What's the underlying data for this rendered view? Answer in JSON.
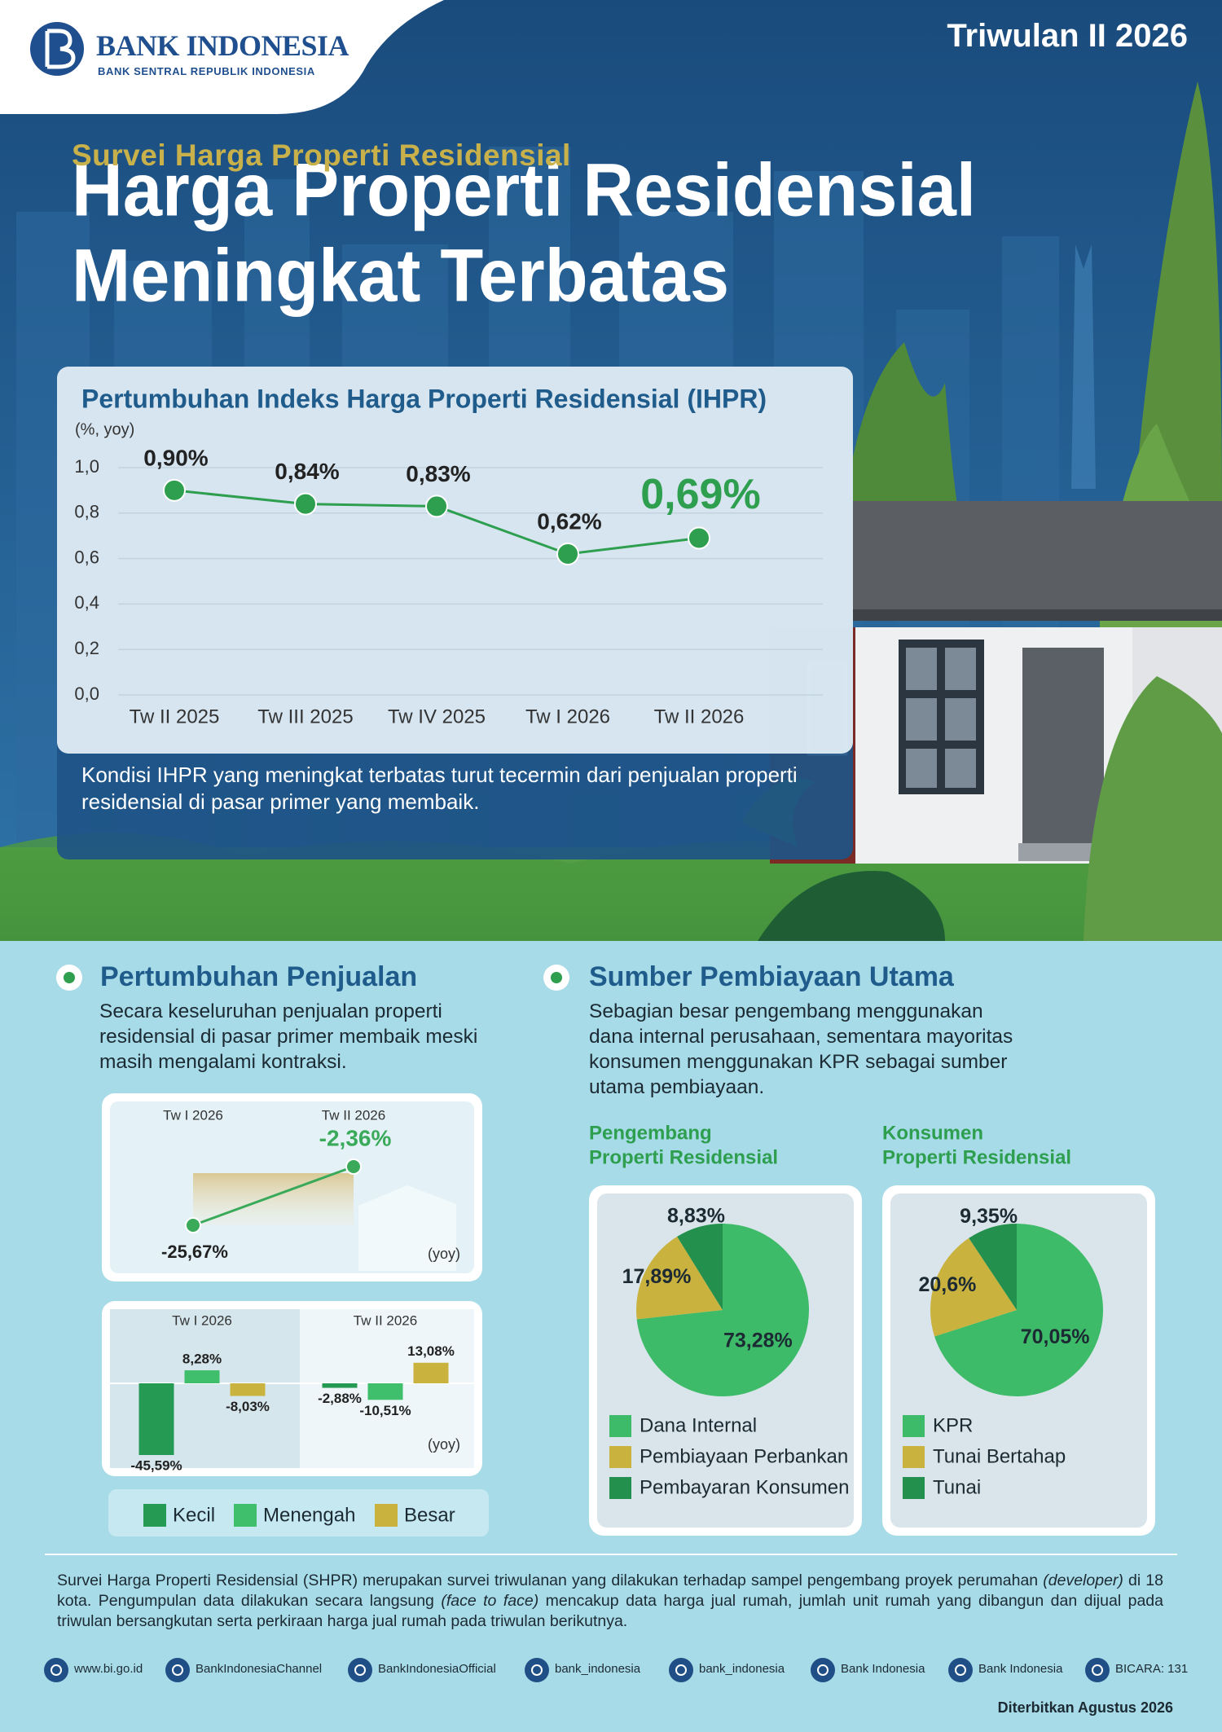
{
  "header": {
    "logo_name": "BANK INDONESIA",
    "logo_tagline": "BANK SENTRAL REPUBLIK INDONESIA",
    "period": "Triwulan II 2026",
    "kicker": "Survei Harga Properti Residensial",
    "title_lines": [
      "Harga Properti Residensial",
      "Meningkat Terbatas"
    ]
  },
  "sections": {
    "sales": {
      "heading": "Pertumbuhan Penjualan",
      "text": "Secara keseluruhan penjualan properti residensial di pasar primer membaik meski masih mengalami kontraksi."
    },
    "financing": {
      "heading": "Sumber Pembiayaan Utama",
      "text": "Sebagian besar pengembang menggunakan dana internal perusahaan, sementara mayoritas konsumen menggunakan KPR sebagai sumber utama pembiayaan."
    }
  },
  "chart_data": [
    {
      "type": "line",
      "title": "Pertumbuhan Indeks Harga Properti Residensial (IHPR)",
      "y_label": "(%, yoy)",
      "categories": [
        "Tw II 2025",
        "Tw III 2025",
        "Tw IV 2025",
        "Tw I 2026",
        "Tw II 2026"
      ],
      "values": [
        0.9,
        0.84,
        0.83,
        0.62,
        0.69
      ],
      "value_labels": [
        "0,90%",
        "0,84%",
        "0,83%",
        "0,62%",
        "0,69%"
      ],
      "color": "#2e9e4f",
      "ylim": [
        0,
        1.0
      ],
      "yticks": [
        {
          "value": 0,
          "label": "0,0"
        },
        {
          "value": 0.2,
          "label": "0,2"
        },
        {
          "value": 0.4,
          "label": "0,4"
        },
        {
          "value": 0.6,
          "label": "0,6"
        },
        {
          "value": 0.8,
          "label": "0,8"
        },
        {
          "value": 1.0,
          "label": "1,0"
        }
      ],
      "grid": true,
      "annotation": "Kondisi IHPR yang meningkat terbatas turut tecermin dari penjualan properti residensial di pasar primer yang membaik."
    },
    {
      "type": "line",
      "categories": [
        "Tw I 2026",
        "Tw II 2026"
      ],
      "values": [
        -25.67,
        -2.36
      ],
      "value_labels": [
        "-25,67%",
        "-2,36%"
      ],
      "color": "#3aaa5a",
      "unit_label": "(yoy)"
    },
    {
      "type": "bar",
      "categories": [
        "Tw I 2026",
        "Tw II 2026"
      ],
      "series": [
        {
          "name": "Kecil",
          "color": "#259a52",
          "values": [
            -45.59,
            -2.88
          ],
          "value_labels": [
            "-45,59%",
            "-2,88%"
          ]
        },
        {
          "name": "Menengah",
          "color": "#3fbf6b",
          "values": [
            8.28,
            -10.51
          ],
          "value_labels": [
            "8,28%",
            "-10,51%"
          ]
        },
        {
          "name": "Besar",
          "color": "#c9b23e",
          "values": [
            -8.03,
            13.08
          ],
          "value_labels": [
            "-8,03%",
            "13,08%"
          ]
        }
      ],
      "unit_label": "(yoy)"
    },
    {
      "type": "pie",
      "title_lines": [
        "Pengembang",
        "Properti Residensial"
      ],
      "categories": [
        "Dana Internal",
        "Pembiayaan Perbankan",
        "Pembayaran Konsumen"
      ],
      "values": [
        73.28,
        17.89,
        8.83
      ],
      "value_labels": [
        "73,28%",
        "17,89%",
        "8,83%"
      ],
      "colors": [
        "#3dbb68",
        "#c9b23e",
        "#23904d"
      ]
    },
    {
      "type": "pie",
      "title_lines": [
        "Konsumen",
        "Properti Residensial"
      ],
      "categories": [
        "KPR",
        "Tunai Bertahap",
        "Tunai"
      ],
      "values": [
        70.05,
        20.6,
        9.35
      ],
      "value_labels": [
        "70,05%",
        "20,6%",
        "9,35%"
      ],
      "colors": [
        "#3dbb68",
        "#c9b23e",
        "#23904d"
      ]
    }
  ],
  "footer": {
    "note_parts": [
      "Survei Harga Properti Residensial (SHPR) merupakan survei triwulanan yang dilakukan terhadap sampel pengembang proyek perumahan ",
      "(developer)",
      " di 18 kota. Pengumpulan data dilakukan secara langsung ",
      "(face to face)",
      " mencakup data harga jual rumah, jumlah unit rumah yang dibangun dan dijual pada triwulan bersangkutan serta perkiraan harga jual rumah pada triwulan berikutnya."
    ],
    "links": [
      "www.bi.go.id",
      "BankIndonesiaChannel",
      "BankIndonesiaOfficial",
      "bank_indonesia",
      "bank_indonesia",
      "Bank Indonesia",
      "Bank Indonesia",
      "BICARA: 131"
    ],
    "published": "Diterbitkan Agustus 2026"
  }
}
